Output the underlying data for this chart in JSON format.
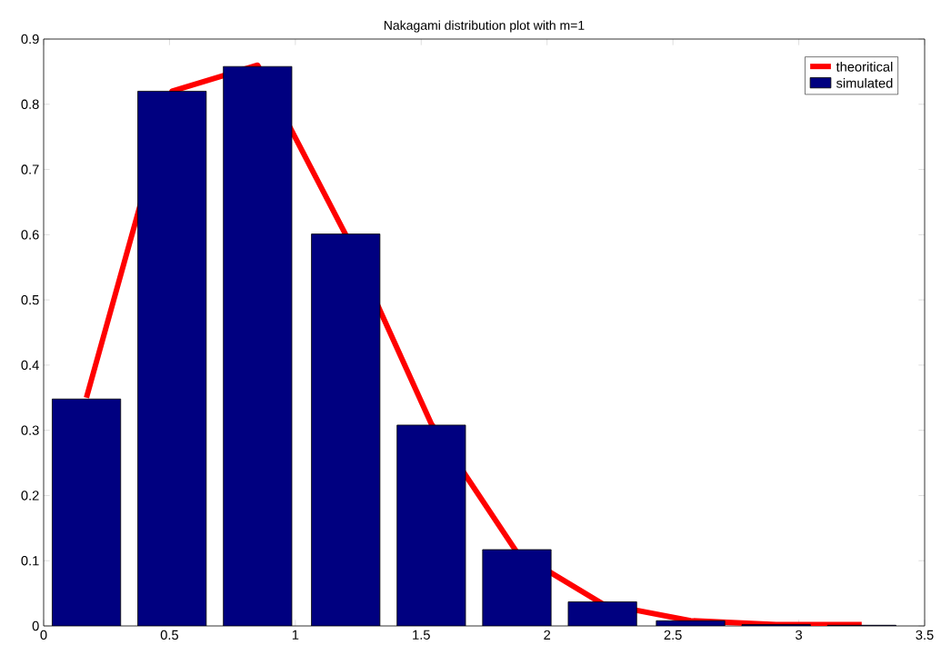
{
  "chart_data": {
    "type": "bar",
    "title": "Nakagami distribution plot with m=1",
    "x": [
      0.17,
      0.51,
      0.85,
      1.2,
      1.54,
      1.88,
      2.22,
      2.57,
      2.91,
      3.25
    ],
    "series": [
      {
        "name": "theoritical",
        "type": "line",
        "color": "#ff0000",
        "values": [
          0.35,
          0.82,
          0.86,
          0.6,
          0.31,
          0.113,
          0.034,
          0.008,
          0.002,
          0.002
        ]
      },
      {
        "name": "simulated",
        "type": "bar",
        "color": "#000080",
        "values": [
          0.348,
          0.82,
          0.858,
          0.601,
          0.308,
          0.117,
          0.037,
          0.008,
          0.002,
          0.001
        ]
      }
    ],
    "xlim": [
      0,
      3.5
    ],
    "ylim": [
      0,
      0.9
    ],
    "xticks": [
      0,
      0.5,
      1,
      1.5,
      2,
      2.5,
      3,
      3.5
    ],
    "yticks": [
      0,
      0.1,
      0.2,
      0.3,
      0.4,
      0.5,
      0.6,
      0.7,
      0.8,
      0.9
    ],
    "legend": "top right"
  }
}
